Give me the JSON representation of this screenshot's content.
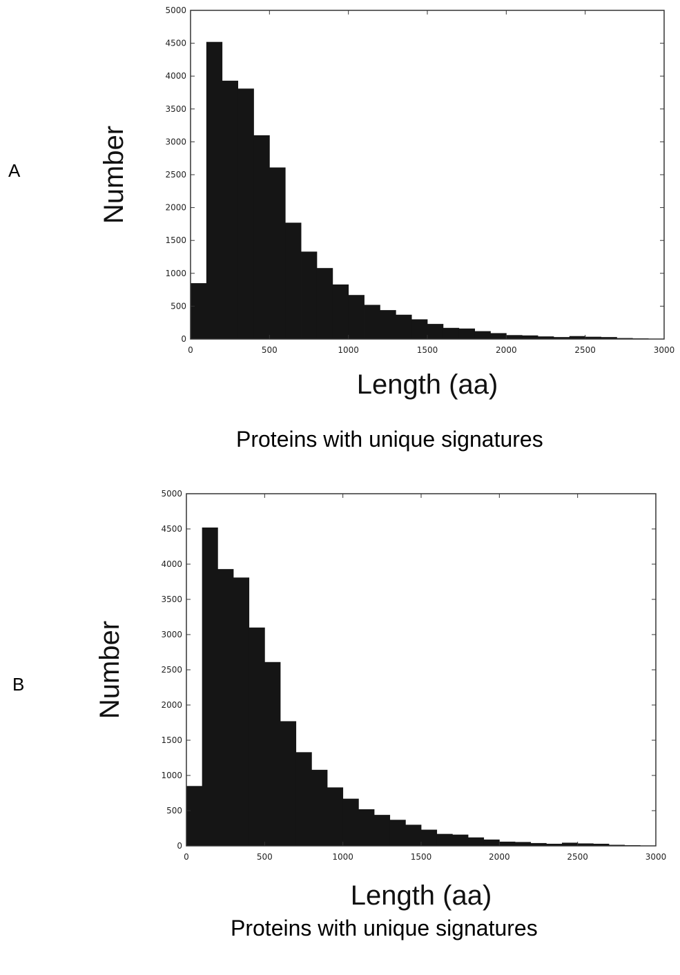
{
  "panels": [
    {
      "letter": "A",
      "caption": "Proteins with unique signatures",
      "chart_data": {
        "type": "bar",
        "subtype": "histogram",
        "xlabel": "Length (aa)",
        "ylabel": "Number",
        "xlim": [
          0,
          3000
        ],
        "ylim": [
          0,
          5000
        ],
        "xticks": [
          "0",
          "500",
          "1000",
          "1500",
          "2000",
          "2500",
          "3000"
        ],
        "yticks": [
          "0",
          "500",
          "1000",
          "1500",
          "2000",
          "2500",
          "3000",
          "3500",
          "4000",
          "4500",
          "5000"
        ],
        "bin_width": 100,
        "bin_starts": [
          0,
          100,
          200,
          300,
          400,
          500,
          600,
          700,
          800,
          900,
          1000,
          1100,
          1200,
          1300,
          1400,
          1500,
          1600,
          1700,
          1800,
          1900,
          2000,
          2100,
          2200,
          2300,
          2400,
          2500,
          2600,
          2700,
          2800,
          2900
        ],
        "values": [
          850,
          4520,
          3930,
          3810,
          3100,
          2610,
          1770,
          1330,
          1080,
          830,
          670,
          520,
          440,
          370,
          300,
          230,
          170,
          160,
          120,
          90,
          60,
          55,
          40,
          30,
          45,
          35,
          30,
          15,
          10,
          5
        ],
        "bar_color": "#151515",
        "grid": false
      }
    },
    {
      "letter": "B",
      "caption": "Proteins with unique signatures",
      "chart_data": {
        "type": "bar",
        "subtype": "histogram",
        "xlabel": "Length (aa)",
        "ylabel": "Number",
        "xlim": [
          0,
          3000
        ],
        "ylim": [
          0,
          5000
        ],
        "xticks": [
          "0",
          "500",
          "1000",
          "1500",
          "2000",
          "2500",
          "3000"
        ],
        "yticks": [
          "0",
          "500",
          "1000",
          "1500",
          "2000",
          "2500",
          "3000",
          "3500",
          "4000",
          "4500",
          "5000"
        ],
        "bin_width": 100,
        "bin_starts": [
          0,
          100,
          200,
          300,
          400,
          500,
          600,
          700,
          800,
          900,
          1000,
          1100,
          1200,
          1300,
          1400,
          1500,
          1600,
          1700,
          1800,
          1900,
          2000,
          2100,
          2200,
          2300,
          2400,
          2500,
          2600,
          2700,
          2800,
          2900
        ],
        "values": [
          850,
          4520,
          3930,
          3810,
          3100,
          2610,
          1770,
          1330,
          1080,
          830,
          670,
          520,
          440,
          370,
          300,
          230,
          170,
          160,
          120,
          90,
          60,
          55,
          40,
          30,
          45,
          35,
          30,
          15,
          10,
          5
        ],
        "bar_color": "#151515",
        "grid": false
      }
    }
  ]
}
